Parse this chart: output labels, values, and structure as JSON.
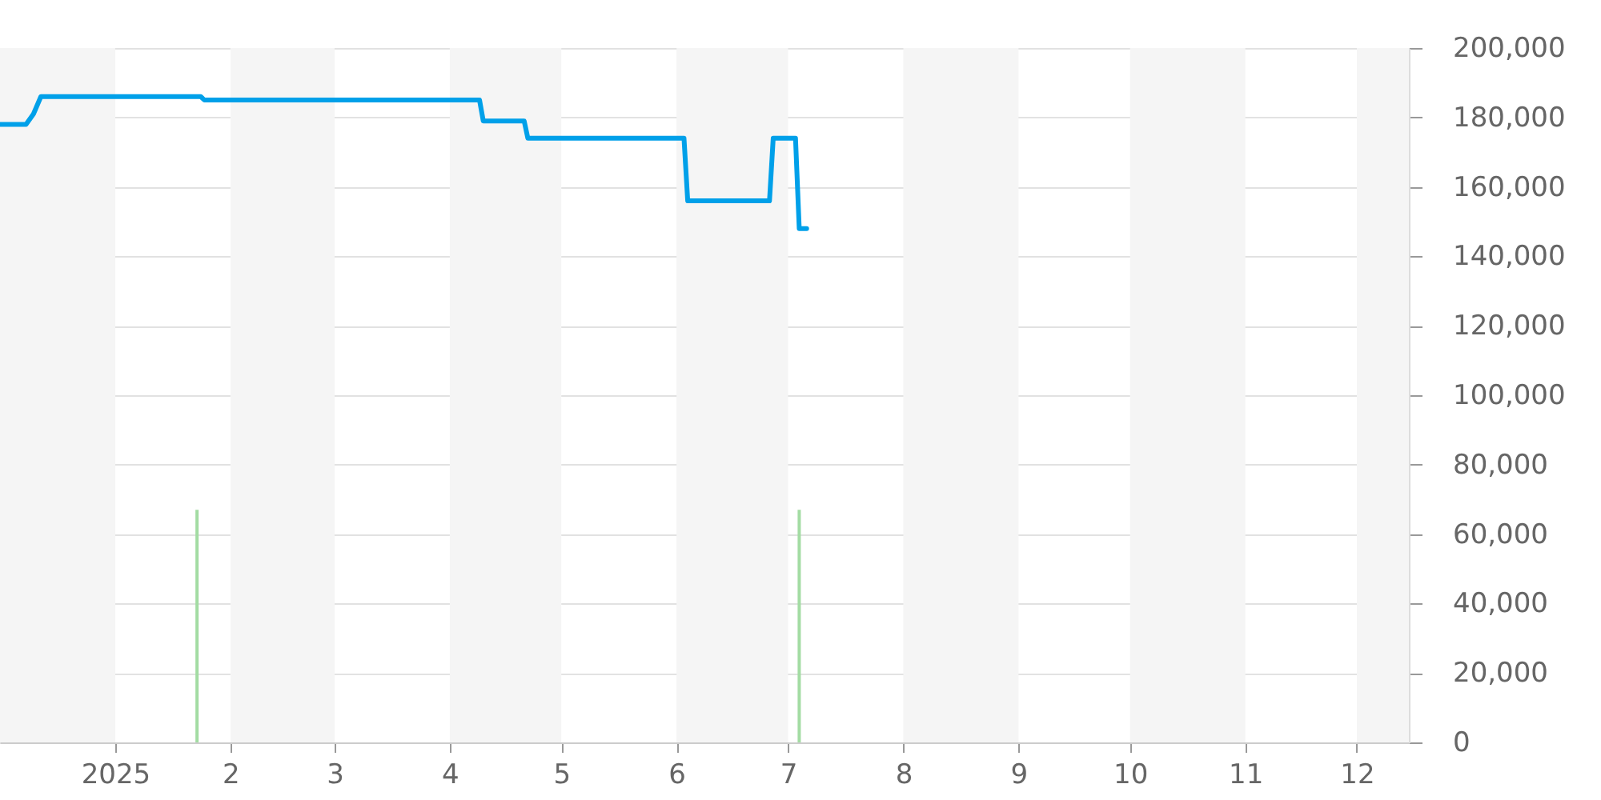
{
  "chart_data": {
    "type": "line",
    "xlim": [
      "2024-12-01",
      "2025-12-15"
    ],
    "xticks": [
      {
        "value": "2025-01-01",
        "label": "2025"
      },
      {
        "value": "2025-02-01",
        "label": "2"
      },
      {
        "value": "2025-03-01",
        "label": "3"
      },
      {
        "value": "2025-04-01",
        "label": "4"
      },
      {
        "value": "2025-05-01",
        "label": "5"
      },
      {
        "value": "2025-06-01",
        "label": "6"
      },
      {
        "value": "2025-07-01",
        "label": "7"
      },
      {
        "value": "2025-08-01",
        "label": "8"
      },
      {
        "value": "2025-09-01",
        "label": "9"
      },
      {
        "value": "2025-10-01",
        "label": "10"
      },
      {
        "value": "2025-11-01",
        "label": "11"
      },
      {
        "value": "2025-12-01",
        "label": "12"
      }
    ],
    "ylim": [
      0,
      200000
    ],
    "yticks": [
      0,
      {
        "value": 20000,
        "label": "20,000"
      },
      {
        "value": 40000,
        "label": "40,000"
      },
      {
        "value": 60000,
        "label": "60,000"
      },
      {
        "value": 80000,
        "label": "80,000"
      },
      {
        "value": 100000,
        "label": "100,000"
      },
      {
        "value": 120000,
        "label": "120,000"
      },
      {
        "value": 140000,
        "label": "140,000"
      },
      {
        "value": 160000,
        "label": "160,000"
      },
      {
        "value": 180000,
        "label": "180,000"
      },
      {
        "value": 200000,
        "label": "200,000"
      }
    ],
    "grid": "y",
    "line_style": "solid",
    "bands": [
      {
        "axis": "x",
        "from": "2024-12-01",
        "to": "2025-01-01",
        "color": "#f5f5f5"
      },
      {
        "axis": "x",
        "from": "2025-02-01",
        "to": "2025-03-01",
        "color": "#f5f5f5"
      },
      {
        "axis": "x",
        "from": "2025-04-01",
        "to": "2025-05-01",
        "color": "#f5f5f5"
      },
      {
        "axis": "x",
        "from": "2025-06-01",
        "to": "2025-07-01",
        "color": "#f5f5f5"
      },
      {
        "axis": "x",
        "from": "2025-08-01",
        "to": "2025-09-01",
        "color": "#f5f5f5"
      },
      {
        "axis": "x",
        "from": "2025-10-01",
        "to": "2025-11-01",
        "color": "#f5f5f5"
      },
      {
        "axis": "x",
        "from": "2025-12-01",
        "to": "2025-12-15",
        "color": "#f5f5f5"
      }
    ],
    "series": [
      {
        "type": "bar",
        "color": "#a3dca3",
        "x": [
          "2025-01-23",
          "2025-07-04"
        ],
        "values": [
          67000,
          67000
        ]
      },
      {
        "color": "#00a0e9",
        "x": [
          "2024-12-01",
          "2024-12-08",
          "2024-12-10",
          "2024-12-12",
          "2025-01-24",
          "2025-01-25",
          "2025-04-09",
          "2025-04-10",
          "2025-04-21",
          "2025-04-22",
          "2025-06-03",
          "2025-06-04",
          "2025-06-26",
          "2025-06-27",
          "2025-07-03",
          "2025-07-04",
          "2025-07-06"
        ],
        "values": [
          178000,
          178000,
          181000,
          186000,
          186000,
          185000,
          185000,
          179000,
          179000,
          174000,
          174000,
          156000,
          156000,
          174000,
          174000,
          148000,
          148000
        ]
      }
    ]
  }
}
